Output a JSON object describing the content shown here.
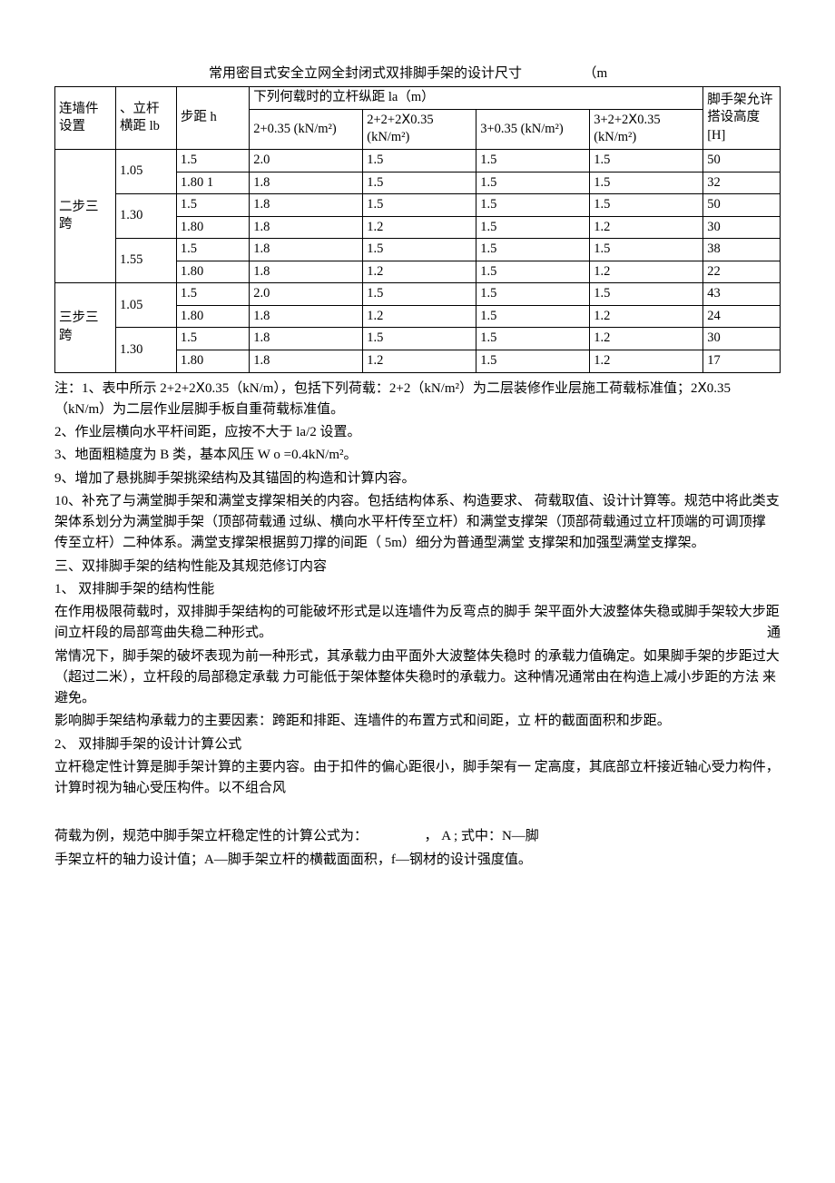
{
  "title": "常用密目式安全立网全封闭式双排脚手架的设计尺寸",
  "title_unit": "（m",
  "table": {
    "head": {
      "conn": "连墙件设置",
      "lb": "、立杆横距 lb",
      "h": "步距 h",
      "la_group": "下列何载时的立杆纵距 la（m）",
      "la1": "2+0.35 (kN/m²)",
      "la2": "2+2+2Ⅹ0.35 (kN/m²)",
      "la3": "3+0.35 (kN/m²)",
      "la4": "3+2+2Ⅹ0.35 (kN/m²)",
      "H": "脚手架允许搭设高度 [H]"
    },
    "groups": [
      {
        "conn": "二步三跨",
        "subgroups": [
          {
            "lb": "1.05",
            "rows": [
              {
                "h": "1.5",
                "la1": "2.0",
                "la2": "1.5",
                "la3": "1.5",
                "la4": "1.5",
                "H": "50"
              },
              {
                "h": "1.80 1",
                "la1": "1.8",
                "la2": "1.5",
                "la3": "1.5",
                "la4": "1.5",
                "H": "32"
              }
            ]
          },
          {
            "lb": "1.30",
            "rows": [
              {
                "h": "1.5",
                "la1": "1.8",
                "la2": "1.5",
                "la3": "1.5",
                "la4": "1.5",
                "H": "50"
              },
              {
                "h": "1.80",
                "la1": "1.8",
                "la2": "1.2",
                "la3": "1.5",
                "la4": "1.2",
                "H": "30"
              }
            ]
          },
          {
            "lb": "1.55",
            "rows": [
              {
                "h": "1.5",
                "la1": "1.8",
                "la2": "1.5",
                "la3": "1.5",
                "la4": "1.5",
                "H": "38"
              },
              {
                "h": "1.80",
                "la1": "1.8",
                "la2": "1.2",
                "la3": "1.5",
                "la4": "1.2",
                "H": "22"
              }
            ]
          }
        ]
      },
      {
        "conn": "三步三跨",
        "subgroups": [
          {
            "lb": "1.05",
            "rows": [
              {
                "h": "1.5",
                "la1": "2.0",
                "la2": "1.5",
                "la3": "1.5",
                "la4": "1.5",
                "H": "43"
              },
              {
                "h": "1.80",
                "la1": "1.8",
                "la2": "1.2",
                "la3": "1.5",
                "la4": "1.2",
                "H": "24"
              }
            ]
          },
          {
            "lb": "1.30",
            "rows": [
              {
                "h": "1.5",
                "la1": "1.8",
                "la2": "1.5",
                "la3": "1.5",
                "la4": "1.2",
                "H": "30"
              },
              {
                "h": "1.80",
                "la1": "1.8",
                "la2": "1.2",
                "la3": "1.5",
                "la4": "1.2",
                "H": "17"
              }
            ]
          }
        ]
      }
    ]
  },
  "notes": {
    "n1": "注：1、表中所示 2+2+2Ⅹ0.35（kN/m），包括下列荷载：2+2（kN/m²）为二层装修作业层施工荷载标准值；2Ⅹ0.35（kN/m）为二层作业层脚手板自重荷载标准值。",
    "n2": "2、作业层横向水平杆间距，应按不大于 la/2 设置。",
    "n3": "3、地面粗糙度为 B 类，基本风压 W o =0.4kN/m²。",
    "n9": "9、增加了悬挑脚手架挑梁结构及其锚固的构造和计算内容。",
    "n10": "10、补充了与满堂脚手架和满堂支撑架相关的内容。包括结构体系、构造要求、 荷载取值、设计计算等。规范中将此类支架体系划分为满堂脚手架（顶部荷载通 过纵、横向水平杆传至立杆）和满堂支撑架（顶部荷载通过立杆顶端的可调顶撑 传至立杆）二种体系。满堂支撑架根据剪刀撑的间距（ 5m）细分为普通型满堂 支撑架和加强型满堂支撑架。",
    "s3": "三、双排脚手架的结构性能及其规范修订内容",
    "s3_1": "1、 双排脚手架的结构性能",
    "p1": "在作用极限荷载时，双排脚手架结构的可能破坏形式是以连墙件为反弯点的脚手 架平面外大波整体失稳或脚手架较大步距间立杆段的局部弯曲失稳二种形式。",
    "p1_tail": "通",
    "p2": "常情况下，脚手架的破坏表现为前一种形式，其承载力由平面外大波整体失稳时 的承载力值确定。如果脚手架的步距过大（超过二米），立杆段的局部稳定承载 力可能低于架体整体失稳时的承载力。这种情况通常由在构造上减小步距的方法 来避免。",
    "p3": "影响脚手架结构承载力的主要因素：跨距和排距、连墙件的布置方式和间距，立 杆的截面面积和步距。",
    "s3_2": "2、 双排脚手架的设计计算公式",
    "p4": "立杆稳定性计算是脚手架计算的主要内容。由于扣件的偏心距很小，脚手架有一 定高度，其底部立杆接近轴心受力构件， 计算时视为轴心受压构件。以不组合风",
    "p5a": "荷载为例，规范中脚手架立杆稳定性的计算公式为：",
    "p5mid": "， A  ;",
    "p5b": "式中：N—脚",
    "p6": "手架立杆的轴力设计值；A—脚手架立杆的横截面面积，f—钢材的设计强度值。"
  }
}
